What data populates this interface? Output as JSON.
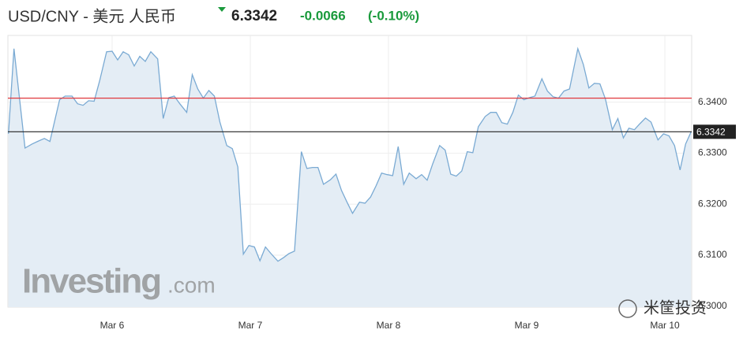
{
  "chart_data": {
    "type": "line",
    "title": "USD/CNY - 美元 人民币",
    "price": 6.3342,
    "change": "-0.0066",
    "change_percent": "(-0.10%)",
    "watermark": "Investing",
    "watermark_suffix": ".com",
    "wechat_watermark": "米筐投资",
    "color": "#7aaad3",
    "fill": "#e4edf5",
    "grid": true,
    "reference_line": {
      "value": 6.3408,
      "color": "#e0393e"
    },
    "current_line_color": "#222222",
    "xlim": [
      -0.754,
      4.194
    ],
    "ylim": [
      6.2998,
      6.3531
    ],
    "xticks": [
      {
        "value": 0,
        "label": "Mar 6"
      },
      {
        "value": 1,
        "label": "Mar 7"
      },
      {
        "value": 2,
        "label": "Mar 8"
      },
      {
        "value": 3,
        "label": "Mar 9"
      },
      {
        "value": 4,
        "label": "Mar 10"
      }
    ],
    "yticks": [
      {
        "value": 6.3,
        "label": "6.3000"
      },
      {
        "value": 6.31,
        "label": "6.3100"
      },
      {
        "value": 6.32,
        "label": "6.3200"
      },
      {
        "value": 6.33,
        "label": "6.3300"
      },
      {
        "value": 6.34,
        "label": "6.3400"
      }
    ],
    "x": [
      -0.75,
      -0.71,
      -0.63,
      -0.58,
      -0.54,
      -0.49,
      -0.45,
      -0.38,
      -0.34,
      -0.29,
      -0.25,
      -0.21,
      -0.17,
      -0.13,
      -0.09,
      -0.04,
      0,
      0.04,
      0.08,
      0.12,
      0.16,
      0.2,
      0.24,
      0.28,
      0.33,
      0.37,
      0.41,
      0.45,
      0.49,
      0.54,
      0.58,
      0.62,
      0.66,
      0.7,
      0.74,
      0.78,
      0.83,
      0.87,
      0.91,
      0.95,
      0.99,
      1.03,
      1.07,
      1.11,
      1.15,
      1.2,
      1.24,
      1.28,
      1.32,
      1.37,
      1.41,
      1.45,
      1.49,
      1.53,
      1.58,
      1.62,
      1.66,
      1.7,
      1.74,
      1.79,
      1.83,
      1.87,
      1.91,
      1.95,
      1.99,
      2.03,
      2.07,
      2.11,
      2.15,
      2.2,
      2.24,
      2.28,
      2.32,
      2.37,
      2.41,
      2.45,
      2.49,
      2.53,
      2.57,
      2.61,
      2.65,
      2.7,
      2.74,
      2.78,
      2.82,
      2.86,
      2.9,
      2.94,
      2.98,
      3.02,
      3.06,
      3.11,
      3.15,
      3.19,
      3.23,
      3.27,
      3.31,
      3.37,
      3.41,
      3.45,
      3.49,
      3.53,
      3.57,
      3.62,
      3.66,
      3.7,
      3.74,
      3.78,
      3.82,
      3.86,
      3.9,
      3.95,
      3.99,
      4.03,
      4.07,
      4.11,
      4.15,
      4.19
    ],
    "values": [
      6.3338,
      6.3505,
      6.331,
      6.3318,
      6.3323,
      6.3329,
      6.3323,
      6.3405,
      6.3412,
      6.3412,
      6.3397,
      6.3394,
      6.3403,
      6.3402,
      6.3442,
      6.3499,
      6.35,
      6.3483,
      6.3499,
      6.3493,
      6.3471,
      6.349,
      6.348,
      6.3499,
      6.3485,
      6.3368,
      6.3409,
      6.3412,
      6.3397,
      6.338,
      6.3454,
      6.3426,
      6.3408,
      6.3423,
      6.3412,
      6.3361,
      6.3315,
      6.3309,
      6.3273,
      6.3102,
      6.3119,
      6.3116,
      6.3089,
      6.3116,
      6.3103,
      6.3088,
      6.3095,
      6.3103,
      6.3108,
      6.3303,
      6.327,
      6.3272,
      6.3272,
      6.3239,
      6.3248,
      6.3259,
      6.3227,
      6.3204,
      6.3182,
      6.3204,
      6.3202,
      6.3214,
      6.3236,
      6.3261,
      6.3258,
      6.3256,
      6.3313,
      6.3239,
      6.3261,
      6.325,
      6.3258,
      6.3247,
      6.3279,
      6.3315,
      6.3306,
      6.3259,
      6.3255,
      6.3265,
      6.3303,
      6.3301,
      6.3352,
      6.3372,
      6.338,
      6.338,
      6.336,
      6.3357,
      6.338,
      6.3414,
      6.3405,
      6.3409,
      6.3412,
      6.3446,
      6.3422,
      6.3411,
      6.3408,
      6.3422,
      6.3426,
      6.3505,
      6.3474,
      6.3428,
      6.3437,
      6.3436,
      6.3406,
      6.3346,
      6.3368,
      6.333,
      6.3349,
      6.3346,
      6.3358,
      6.3369,
      6.3361,
      6.3326,
      6.3338,
      6.3334,
      6.3315,
      6.3267,
      6.3318,
      6.3342
    ]
  }
}
